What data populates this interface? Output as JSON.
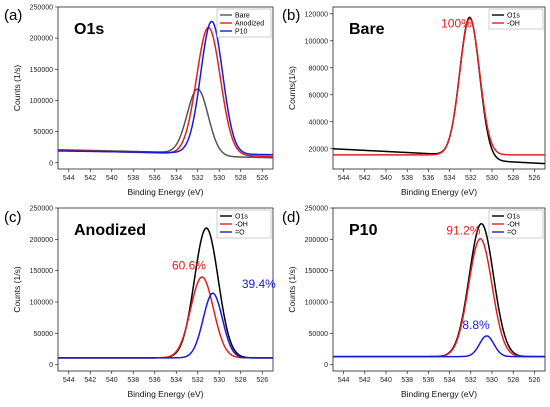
{
  "chart_data": [
    {
      "panel": "(a)",
      "title": "O1s",
      "type": "line",
      "xlabel": "Binding Energy (eV)",
      "ylabel": "Counts (1/s)",
      "xlim": [
        545,
        525
      ],
      "ylim": [
        -10000,
        250000
      ],
      "xticks": [
        544,
        542,
        540,
        538,
        536,
        534,
        532,
        530,
        528,
        526
      ],
      "yticks": [
        0,
        50000,
        100000,
        150000,
        200000,
        250000
      ],
      "legend_position": "top-right",
      "series": [
        {
          "name": "Bare",
          "color": "#555555",
          "legend": "Bare",
          "kind": "peak",
          "baseline_l": 21000,
          "baseline_r": 13000,
          "step": 5000,
          "center": 532.0,
          "fwhm": 2.3,
          "amp": 105000
        },
        {
          "name": "Anodized",
          "color": "#e02020",
          "legend": "Anodized",
          "kind": "peak",
          "baseline_l": 20000,
          "baseline_r": 11000,
          "step": 1000,
          "center": 531.0,
          "fwhm": 2.6,
          "amp": 204000
        },
        {
          "name": "P10",
          "color": "#1a1ad6",
          "legend": "P10",
          "kind": "peak",
          "baseline_l": 19000,
          "baseline_r": 14000,
          "step": 1000,
          "center": 530.7,
          "fwhm": 2.4,
          "amp": 212000
        }
      ],
      "annotations": []
    },
    {
      "panel": "(b)",
      "title": "Bare",
      "type": "line",
      "xlabel": "Binding Energy (eV)",
      "ylabel": "Counts(1/s)",
      "xlim": [
        545,
        525
      ],
      "ylim": [
        5000,
        125000
      ],
      "xticks": [
        544,
        542,
        540,
        538,
        536,
        534,
        532,
        530,
        528,
        526
      ],
      "yticks": [
        20000,
        40000,
        60000,
        80000,
        100000,
        120000
      ],
      "legend_position": "top-right",
      "series": [
        {
          "name": "O1s",
          "color": "#000000",
          "legend": "O1s",
          "kind": "peak",
          "baseline_l": 20000,
          "baseline_r": 12000,
          "step": 3000,
          "center": 532.1,
          "fwhm": 2.2,
          "amp": 104000
        },
        {
          "name": "-OH",
          "color": "#e02020",
          "legend": "-OH",
          "kind": "peak",
          "baseline_l": 15500,
          "baseline_r": 15500,
          "step": 0,
          "center": 532.1,
          "fwhm": 2.2,
          "amp": 101000
        }
      ],
      "annotations": [
        {
          "text": "100%",
          "color": "#e02020",
          "x": 534.8,
          "y": 110000
        }
      ]
    },
    {
      "panel": "(c)",
      "title": "Anodized",
      "type": "line",
      "xlabel": "Binding Energy (eV)",
      "ylabel": "Counts (1/s)",
      "xlim": [
        545,
        525
      ],
      "ylim": [
        -10000,
        250000
      ],
      "xticks": [
        544,
        542,
        540,
        538,
        536,
        534,
        532,
        530,
        528,
        526
      ],
      "yticks": [
        0,
        50000,
        100000,
        150000,
        200000,
        250000
      ],
      "legend_position": "top-right",
      "series": [
        {
          "name": "O1s",
          "color": "#000000",
          "legend": "O1s",
          "kind": "peak",
          "baseline_l": 11000,
          "baseline_r": 11000,
          "step": 0,
          "center": 531.2,
          "fwhm": 2.6,
          "amp": 207000
        },
        {
          "name": "-OH",
          "color": "#e02020",
          "legend": "-OH",
          "kind": "peak",
          "baseline_l": 11000,
          "baseline_r": 11000,
          "step": 0,
          "center": 531.6,
          "fwhm": 2.5,
          "amp": 129000
        },
        {
          "name": "=O",
          "color": "#1a1ad6",
          "legend": "=O",
          "kind": "peak",
          "baseline_l": 11000,
          "baseline_r": 11000,
          "step": 0,
          "center": 530.6,
          "fwhm": 2.1,
          "amp": 103000
        }
      ],
      "annotations": [
        {
          "text": "60.6%",
          "color": "#e02020",
          "x": 534.4,
          "y": 152000
        },
        {
          "text": "39.4%",
          "color": "#1a1ad6",
          "x": 527.9,
          "y": 122000
        }
      ]
    },
    {
      "panel": "(d)",
      "title": "P10",
      "type": "line",
      "xlabel": "Binding Energy (eV)",
      "ylabel": "Counts (1/s)",
      "xlim": [
        545,
        525
      ],
      "ylim": [
        -10000,
        250000
      ],
      "xticks": [
        544,
        542,
        540,
        538,
        536,
        534,
        532,
        530,
        528,
        526
      ],
      "yticks": [
        0,
        50000,
        100000,
        150000,
        200000,
        250000
      ],
      "legend_position": "top-right",
      "series": [
        {
          "name": "O1s",
          "color": "#000000",
          "legend": "O1s",
          "kind": "peak",
          "baseline_l": 13000,
          "baseline_r": 13000,
          "step": 0,
          "center": 531.0,
          "fwhm": 2.7,
          "amp": 212000
        },
        {
          "name": "-OH",
          "color": "#e02020",
          "legend": "-OH",
          "kind": "peak",
          "baseline_l": 13000,
          "baseline_r": 13000,
          "step": 0,
          "center": 531.1,
          "fwhm": 2.6,
          "amp": 188000
        },
        {
          "name": "=O",
          "color": "#1a1ad6",
          "legend": "=O",
          "kind": "peak",
          "baseline_l": 13000,
          "baseline_r": 13000,
          "step": 0,
          "center": 530.5,
          "fwhm": 1.6,
          "amp": 33000
        }
      ],
      "annotations": [
        {
          "text": "91.2%",
          "color": "#e02020",
          "x": 534.3,
          "y": 208000
        },
        {
          "text": "8.8%",
          "color": "#1a1ad6",
          "x": 532.8,
          "y": 57000
        }
      ]
    }
  ]
}
